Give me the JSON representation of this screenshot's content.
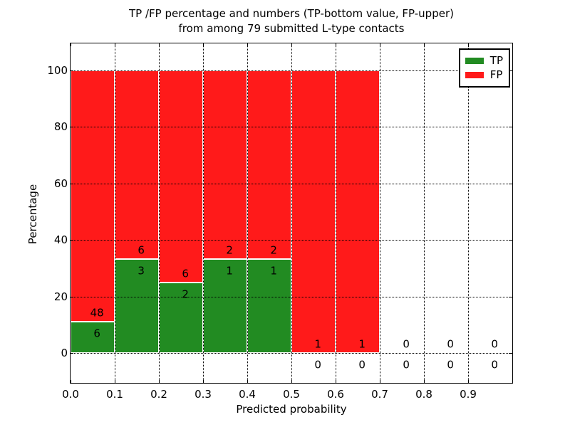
{
  "figure": {
    "title_line1": "TP /FP percentage and numbers (TP-bottom value, FP-upper)",
    "title_line2": "from among 79 submitted L-type contacts"
  },
  "chart_data": {
    "type": "bar",
    "subtype": "stacked-percentage-histogram",
    "title": "TP /FP percentage and numbers (TP-bottom value, FP-upper) from among 79 submitted L-type contacts",
    "xlabel": "Predicted probability",
    "ylabel": "Percentage",
    "xlim": [
      0.0,
      1.0
    ],
    "ylim": [
      -10.5,
      109.5
    ],
    "bin_width": 0.1,
    "grid": "dotted",
    "legend_position": "upper-right",
    "total_contacts": 79,
    "x_tick_values": [
      0.0,
      0.1,
      0.2,
      0.3,
      0.4,
      0.5,
      0.6,
      0.7,
      0.8,
      0.9
    ],
    "x_tick_labels": [
      "0.0",
      "0.1",
      "0.2",
      "0.3",
      "0.4",
      "0.5",
      "0.6",
      "0.7",
      "0.8",
      "0.9"
    ],
    "y_tick_values": [
      0,
      20,
      40,
      60,
      80,
      100
    ],
    "y_tick_labels": [
      "0",
      "20",
      "40",
      "60",
      "80",
      "100"
    ],
    "categories": [
      "0.0-0.1",
      "0.1-0.2",
      "0.2-0.3",
      "0.3-0.4",
      "0.4-0.5",
      "0.5-0.6",
      "0.6-0.7",
      "0.7-0.8",
      "0.8-0.9",
      "0.9-1.0"
    ],
    "bin_starts": [
      0.0,
      0.1,
      0.2,
      0.3,
      0.4,
      0.5,
      0.6,
      0.7,
      0.8,
      0.9
    ],
    "series": [
      {
        "name": "TP",
        "color": "#228b22",
        "values": [
          6,
          3,
          2,
          1,
          1,
          0,
          0,
          0,
          0,
          0
        ]
      },
      {
        "name": "FP",
        "color": "#ff1a1a",
        "values": [
          48,
          6,
          6,
          2,
          2,
          1,
          1,
          0,
          0,
          0
        ]
      }
    ],
    "tp_percent": [
      11.11,
      33.33,
      25.0,
      33.33,
      33.33,
      0.0,
      0.0,
      null,
      null,
      null
    ],
    "legend": [
      {
        "label": "TP",
        "color": "#228b22"
      },
      {
        "label": "FP",
        "color": "#ff1a1a"
      }
    ]
  }
}
